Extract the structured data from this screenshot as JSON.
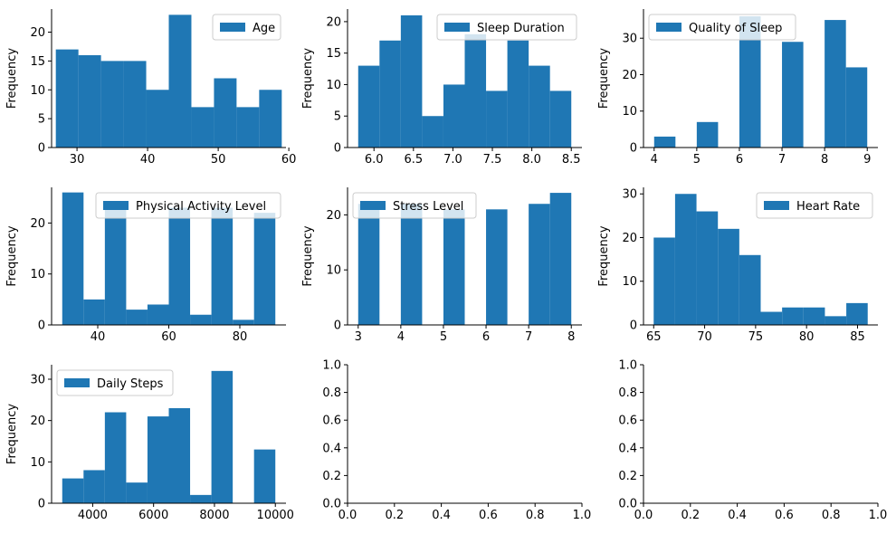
{
  "figure": {
    "ylabel_default": "Frequency"
  },
  "colors": {
    "bar": "#1f77b4",
    "axis": "#000000",
    "legend_edge": "#cccccc",
    "background": "#ffffff"
  },
  "chart_data": [
    {
      "type": "histogram",
      "title": "",
      "xlabel": "",
      "ylabel": "Frequency",
      "legend": "Age",
      "legend_loc": "upper right",
      "xlim": [
        26.4,
        59.6
      ],
      "ylim": [
        0,
        24
      ],
      "xticks": [
        30,
        40,
        50,
        60
      ],
      "yticks": [
        0,
        5,
        10,
        15,
        20
      ],
      "bins": [
        27,
        30.2,
        33.4,
        36.6,
        39.8,
        43,
        46.2,
        49.4,
        52.6,
        55.8,
        59
      ],
      "counts": [
        17,
        16,
        15,
        15,
        10,
        23,
        7,
        12,
        7,
        10
      ]
    },
    {
      "type": "histogram",
      "title": "",
      "xlabel": "",
      "ylabel": "Frequency",
      "legend": "Sleep Duration",
      "legend_loc": "upper right",
      "xlim": [
        5.665,
        8.635
      ],
      "ylim": [
        0,
        22
      ],
      "xticks": [
        6.0,
        6.5,
        7.0,
        7.5,
        8.0,
        8.5
      ],
      "yticks": [
        0,
        5,
        10,
        15,
        20
      ],
      "bins": [
        5.8,
        6.07,
        6.34,
        6.61,
        6.88,
        7.15,
        7.42,
        7.69,
        7.96,
        8.23,
        8.5
      ],
      "counts": [
        13,
        17,
        21,
        5,
        10,
        18,
        9,
        17,
        13,
        9
      ]
    },
    {
      "type": "histogram",
      "title": "",
      "xlabel": "",
      "ylabel": "Frequency",
      "legend": "Quality of Sleep",
      "legend_loc": "upper left",
      "xlim": [
        3.75,
        9.25
      ],
      "ylim": [
        0,
        38
      ],
      "xticks": [
        4,
        5,
        6,
        7,
        8,
        9
      ],
      "yticks": [
        0,
        10,
        20,
        30
      ],
      "bins": [
        4,
        4.5,
        5,
        5.5,
        6,
        6.5,
        7,
        7.5,
        8,
        8.5,
        9
      ],
      "counts": [
        3,
        0,
        7,
        0,
        36,
        0,
        29,
        0,
        35,
        22
      ]
    },
    {
      "type": "histogram",
      "title": "",
      "xlabel": "",
      "ylabel": "Frequency",
      "legend": "Physical Activity Level",
      "legend_loc": "upper right",
      "xlim": [
        27,
        93
      ],
      "ylim": [
        0,
        27
      ],
      "xticks": [
        40,
        60,
        80
      ],
      "yticks": [
        0,
        10,
        20
      ],
      "bins": [
        30,
        36,
        42,
        48,
        54,
        60,
        66,
        72,
        78,
        84,
        90
      ],
      "counts": [
        26,
        5,
        23,
        3,
        4,
        23,
        2,
        23,
        1,
        22
      ]
    },
    {
      "type": "histogram",
      "title": "",
      "xlabel": "",
      "ylabel": "Frequency",
      "legend": "Stress Level",
      "legend_loc": "upper left",
      "xlim": [
        2.75,
        8.25
      ],
      "ylim": [
        0,
        25
      ],
      "xticks": [
        3,
        4,
        5,
        6,
        7,
        8
      ],
      "yticks": [
        0,
        10,
        20
      ],
      "bins": [
        3,
        3.5,
        4,
        4.5,
        5,
        5.5,
        6,
        6.5,
        7,
        7.5,
        8
      ],
      "counts": [
        22,
        0,
        22,
        0,
        21,
        0,
        21,
        0,
        22,
        24
      ]
    },
    {
      "type": "histogram",
      "title": "",
      "xlabel": "",
      "ylabel": "Frequency",
      "legend": "Heart Rate",
      "legend_loc": "upper right",
      "xlim": [
        64.0,
        87.0
      ],
      "ylim": [
        0,
        31.5
      ],
      "xticks": [
        65,
        70,
        75,
        80,
        85
      ],
      "yticks": [
        0,
        10,
        20,
        30
      ],
      "bins": [
        65,
        67.1,
        69.2,
        71.3,
        73.4,
        75.5,
        77.6,
        79.7,
        81.8,
        83.9,
        86
      ],
      "counts": [
        20,
        30,
        26,
        22,
        16,
        3,
        4,
        4,
        2,
        5
      ]
    },
    {
      "type": "histogram",
      "title": "",
      "xlabel": "",
      "ylabel": "Frequency",
      "legend": "Daily Steps",
      "legend_loc": "upper left",
      "xlim": [
        2650,
        10350
      ],
      "ylim": [
        0,
        33.5
      ],
      "xticks": [
        4000,
        6000,
        8000,
        10000
      ],
      "yticks": [
        0,
        10,
        20,
        30
      ],
      "bins": [
        3000,
        3700,
        4400,
        5100,
        5800,
        6500,
        7200,
        7900,
        8600,
        9300,
        10000
      ],
      "counts": [
        6,
        8,
        22,
        5,
        21,
        23,
        2,
        32,
        0,
        13
      ]
    },
    {
      "type": "empty",
      "xlim": [
        0,
        1
      ],
      "ylim": [
        0,
        1
      ],
      "xticks": [
        0.0,
        0.2,
        0.4,
        0.6,
        0.8,
        1.0
      ],
      "yticks": [
        0.0,
        0.2,
        0.4,
        0.6,
        0.8,
        1.0
      ]
    },
    {
      "type": "empty",
      "xlim": [
        0,
        1
      ],
      "ylim": [
        0,
        1
      ],
      "xticks": [
        0.0,
        0.2,
        0.4,
        0.6,
        0.8,
        1.0
      ],
      "yticks": [
        0.0,
        0.2,
        0.4,
        0.6,
        0.8,
        1.0
      ]
    }
  ]
}
